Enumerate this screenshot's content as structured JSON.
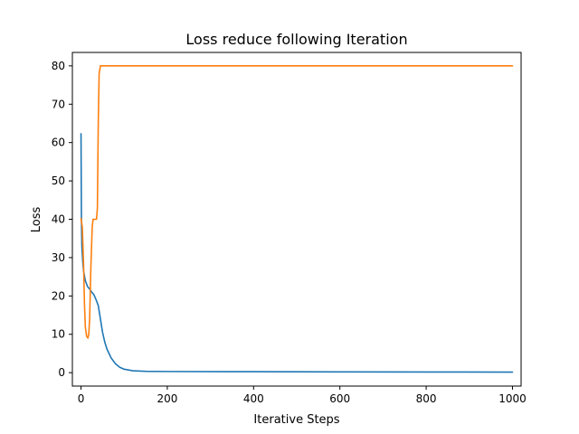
{
  "chart_data": {
    "type": "line",
    "title": "Loss reduce following Iteration",
    "xlabel": "Iterative Steps",
    "ylabel": "Loss",
    "xlim": [
      -20,
      1020
    ],
    "ylim": [
      -3.5,
      83.5
    ],
    "grid": false,
    "x_ticks": [
      0,
      200,
      400,
      600,
      800,
      1000
    ],
    "y_ticks": [
      0,
      10,
      20,
      30,
      40,
      50,
      60,
      70,
      80
    ],
    "series": [
      {
        "color": "#1f77b4",
        "points": [
          [
            0,
            62.3
          ],
          [
            1,
            40
          ],
          [
            2,
            33
          ],
          [
            4,
            29
          ],
          [
            6,
            26.5
          ],
          [
            10,
            24
          ],
          [
            15,
            22.5
          ],
          [
            20,
            21.8
          ],
          [
            25,
            21
          ],
          [
            30,
            20.3
          ],
          [
            35,
            19
          ],
          [
            40,
            17.5
          ],
          [
            45,
            14
          ],
          [
            50,
            10.5
          ],
          [
            55,
            8
          ],
          [
            60,
            6.2
          ],
          [
            70,
            3.8
          ],
          [
            80,
            2.3
          ],
          [
            90,
            1.4
          ],
          [
            100,
            0.9
          ],
          [
            120,
            0.5
          ],
          [
            150,
            0.35
          ],
          [
            200,
            0.3
          ],
          [
            400,
            0.25
          ],
          [
            600,
            0.2
          ],
          [
            800,
            0.18
          ],
          [
            1000,
            0.15
          ]
        ]
      },
      {
        "color": "#ff7f0e",
        "points": [
          [
            0,
            40.2
          ],
          [
            3,
            38
          ],
          [
            6,
            28
          ],
          [
            8,
            18
          ],
          [
            10,
            12
          ],
          [
            13,
            9.5
          ],
          [
            16,
            9
          ],
          [
            18,
            10
          ],
          [
            20,
            14
          ],
          [
            23,
            28
          ],
          [
            26,
            38
          ],
          [
            28,
            40
          ],
          [
            32,
            40
          ],
          [
            36,
            40
          ],
          [
            38,
            43
          ],
          [
            40,
            65
          ],
          [
            42,
            78
          ],
          [
            45,
            80
          ],
          [
            60,
            80
          ],
          [
            100,
            80
          ],
          [
            400,
            80
          ],
          [
            700,
            80
          ],
          [
            1000,
            80
          ]
        ]
      }
    ]
  }
}
